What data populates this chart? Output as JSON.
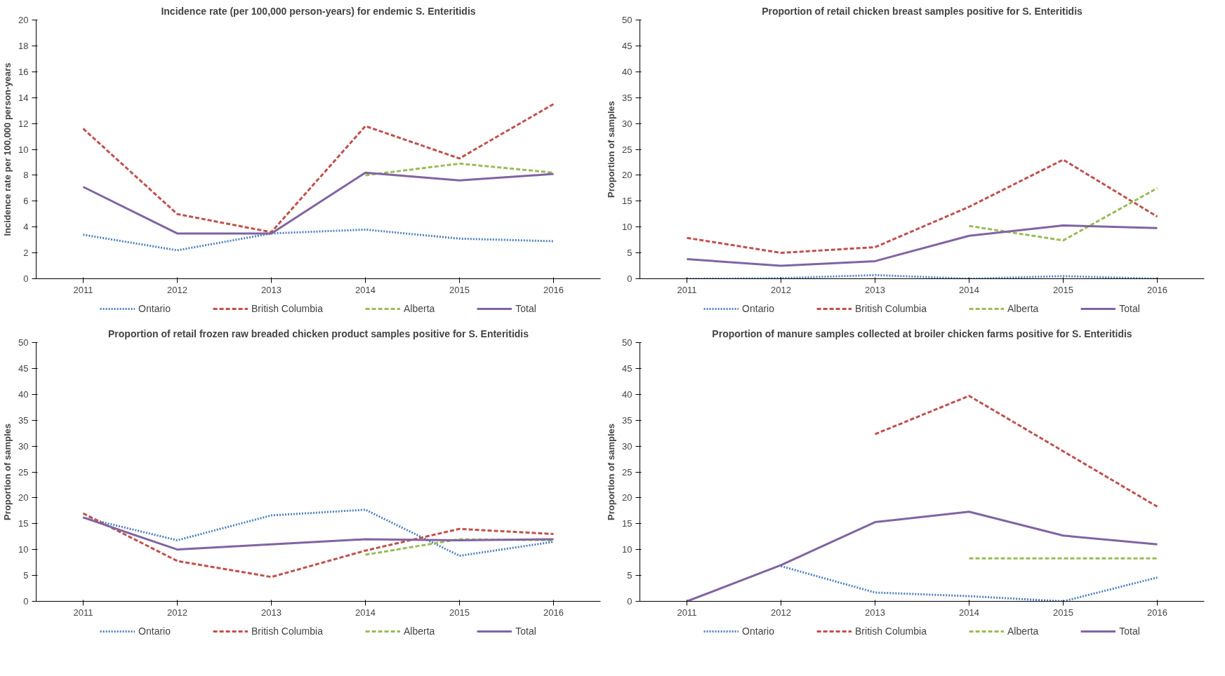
{
  "chart_data": [
    {
      "type": "line",
      "title": "Incidence rate (per 100,000 person-years) for endemic S. Enteritidis",
      "ylabel": "Incidence rate per 100,000 person-years",
      "categories": [
        "2011",
        "2012",
        "2013",
        "2014",
        "2015",
        "2016"
      ],
      "ylim": [
        0,
        20
      ],
      "yticks": [
        0,
        2,
        4,
        6,
        8,
        10,
        12,
        14,
        16,
        18,
        20
      ],
      "legend": "bottom",
      "grid": false,
      "series": [
        {
          "name": "Ontario",
          "color": "#4f81bd",
          "line_style": "dotted",
          "values": [
            3.4,
            2.2,
            3.5,
            3.8,
            3.1,
            2.9
          ]
        },
        {
          "name": "British Columbia",
          "color": "#c0504d",
          "line_style": "dashed",
          "values": [
            11.6,
            5.0,
            3.6,
            11.8,
            9.3,
            13.5
          ]
        },
        {
          "name": "Alberta",
          "color": "#9bbb59",
          "line_style": "dashed",
          "values": [
            null,
            null,
            null,
            8.0,
            8.9,
            8.2
          ]
        },
        {
          "name": "Total",
          "color": "#8064a2",
          "line_style": "solid",
          "values": [
            7.1,
            3.5,
            3.5,
            8.2,
            7.6,
            8.1
          ]
        }
      ]
    },
    {
      "type": "line",
      "title": "Proportion of retail chicken breast samples positive for S. Enteritidis",
      "ylabel": "Proportion of samples",
      "categories": [
        "2011",
        "2012",
        "2013",
        "2014",
        "2015",
        "2016"
      ],
      "ylim": [
        0,
        50
      ],
      "yticks": [
        0,
        5,
        10,
        15,
        20,
        25,
        30,
        35,
        40,
        45,
        50
      ],
      "legend": "bottom",
      "grid": false,
      "series": [
        {
          "name": "Ontario",
          "color": "#4f81bd",
          "line_style": "dotted",
          "values": [
            0,
            0.1,
            0.7,
            0,
            0.5,
            0
          ]
        },
        {
          "name": "British Columbia",
          "color": "#c0504d",
          "line_style": "dashed",
          "values": [
            7.9,
            5.0,
            6.1,
            13.9,
            23.0,
            12.0
          ]
        },
        {
          "name": "Alberta",
          "color": "#9bbb59",
          "line_style": "dashed",
          "values": [
            null,
            null,
            null,
            10.2,
            7.4,
            17.5
          ]
        },
        {
          "name": "Total",
          "color": "#8064a2",
          "line_style": "solid",
          "values": [
            3.8,
            2.5,
            3.4,
            8.3,
            10.3,
            9.8
          ]
        }
      ]
    },
    {
      "type": "line",
      "title": "Proportion of retail frozen raw breaded chicken product samples positive for S. Enteritidis",
      "ylabel": "Proportion of samples",
      "categories": [
        "2011",
        "2012",
        "2013",
        "2014",
        "2015",
        "2016"
      ],
      "ylim": [
        0,
        50
      ],
      "yticks": [
        0,
        5,
        10,
        15,
        20,
        25,
        30,
        35,
        40,
        45,
        50
      ],
      "legend": "bottom",
      "grid": false,
      "series": [
        {
          "name": "Ontario",
          "color": "#4f81bd",
          "line_style": "dotted",
          "values": [
            16.2,
            11.8,
            16.6,
            17.7,
            8.8,
            11.5
          ]
        },
        {
          "name": "British Columbia",
          "color": "#c0504d",
          "line_style": "dashed",
          "values": [
            17.0,
            7.8,
            4.7,
            9.8,
            14.0,
            13.0
          ]
        },
        {
          "name": "Alberta",
          "color": "#9bbb59",
          "line_style": "dashed",
          "values": [
            null,
            null,
            null,
            9.0,
            12.0,
            11.8
          ]
        },
        {
          "name": "Total",
          "color": "#8064a2",
          "line_style": "solid",
          "values": [
            16.2,
            10.0,
            11.0,
            12.0,
            11.8,
            12.0
          ]
        }
      ]
    },
    {
      "type": "line",
      "title": "Proportion of manure samples collected at broiler chicken farms positive for S. Enteritidis",
      "ylabel": "Proportion of samples",
      "categories": [
        "2011",
        "2012",
        "2013",
        "2014",
        "2015",
        "2016"
      ],
      "ylim": [
        0,
        50
      ],
      "yticks": [
        0,
        5,
        10,
        15,
        20,
        25,
        30,
        35,
        40,
        45,
        50
      ],
      "legend": "bottom",
      "grid": false,
      "series": [
        {
          "name": "Ontario",
          "color": "#4f81bd",
          "line_style": "dotted",
          "values": [
            null,
            6.8,
            1.7,
            1.0,
            0,
            4.6
          ]
        },
        {
          "name": "British Columbia",
          "color": "#c0504d",
          "line_style": "dashed",
          "values": [
            null,
            null,
            32.3,
            39.7,
            29.0,
            18.3
          ]
        },
        {
          "name": "Alberta",
          "color": "#9bbb59",
          "line_style": "dashed",
          "values": [
            null,
            null,
            null,
            8.3,
            8.3,
            8.3
          ]
        },
        {
          "name": "Total",
          "color": "#8064a2",
          "line_style": "solid",
          "values": [
            0,
            7.0,
            15.3,
            17.3,
            12.7,
            11.0
          ]
        }
      ]
    }
  ]
}
